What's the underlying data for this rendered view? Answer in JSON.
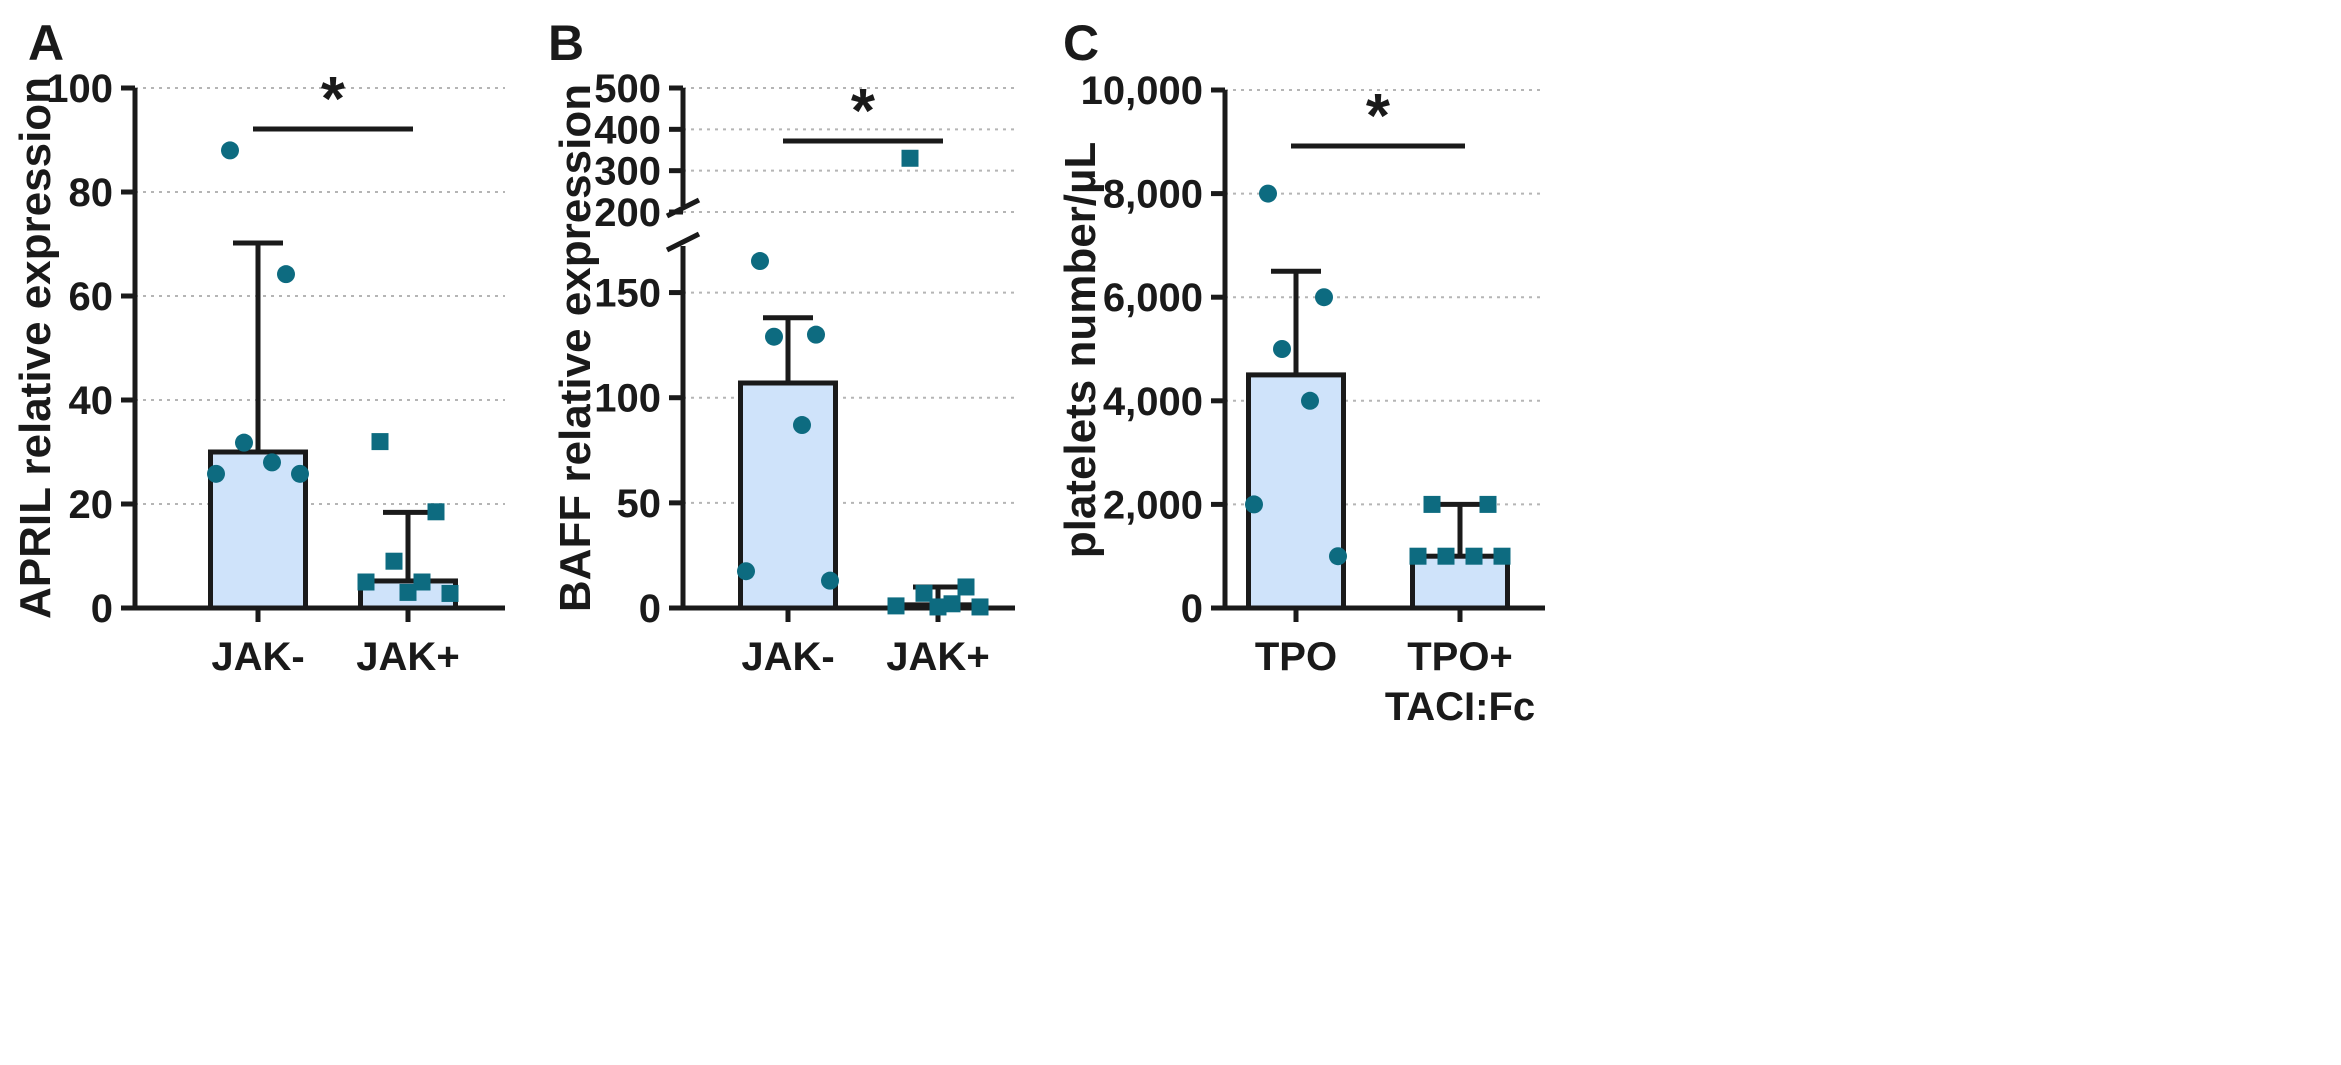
{
  "chart_data": [
    {
      "panel": "A",
      "type": "bar",
      "ylabel": "APRIL relative expression",
      "ylim": [
        0,
        100
      ],
      "yticks": [
        0,
        20,
        40,
        60,
        80,
        100
      ],
      "categories": [
        "JAK-",
        "JAK+"
      ],
      "means": [
        30,
        5.2
      ],
      "error_upper": [
        70.2,
        18.4
      ],
      "points": [
        {
          "category": "JAK-",
          "marker": "circle",
          "values": [
            88,
            64.2,
            31.8,
            28,
            25.8,
            25.8
          ]
        },
        {
          "category": "JAK+",
          "marker": "square",
          "values": [
            32,
            18.5,
            9,
            5,
            5,
            2.8,
            3
          ]
        }
      ],
      "significance": {
        "between": [
          "JAK-",
          "JAK+"
        ],
        "label": "*"
      },
      "colors": {
        "bar_fill": "#cfe3fa",
        "marker": "#0d6b80"
      },
      "grid": true
    },
    {
      "panel": "B",
      "type": "bar",
      "ylabel": "BAFF relative expression",
      "ylim": [
        0,
        500
      ],
      "axis_break": [
        175,
        200
      ],
      "yticks_lower": [
        0,
        50,
        100,
        150
      ],
      "yticks_upper": [
        200,
        300,
        400,
        500
      ],
      "categories": [
        "JAK-",
        "JAK+"
      ],
      "means": [
        107,
        1.5
      ],
      "error_upper": [
        138,
        10
      ],
      "points": [
        {
          "category": "JAK-",
          "marker": "circle",
          "values": [
            165,
            130,
            129,
            87,
            17.5,
            13
          ]
        },
        {
          "category": "JAK+",
          "marker": "square",
          "values": [
            330,
            10,
            7,
            2,
            1,
            0.5,
            0.5
          ]
        }
      ],
      "significance": {
        "between": [
          "JAK-",
          "JAK+"
        ],
        "label": "*"
      },
      "colors": {
        "bar_fill": "#cfe3fa",
        "marker": "#0d6b80"
      },
      "grid": true
    },
    {
      "panel": "C",
      "type": "bar",
      "ylabel": "platelets number/µL",
      "ylim": [
        0,
        10000
      ],
      "yticks": [
        0,
        2000,
        4000,
        6000,
        8000,
        10000
      ],
      "ytick_labels": [
        "0",
        "2,000",
        "4,000",
        "6,000",
        "8,000",
        "10,000"
      ],
      "categories": [
        "TPO",
        "TPO+ TACI:Fc"
      ],
      "category_lines": [
        [
          "TPO"
        ],
        [
          "TPO+",
          "TACI:Fc"
        ]
      ],
      "means": [
        4500,
        1000
      ],
      "error_upper": [
        6500,
        2000
      ],
      "points": [
        {
          "category": "TPO",
          "marker": "circle",
          "values": [
            8000,
            6000,
            5000,
            4000,
            2000,
            1000
          ]
        },
        {
          "category": "TPO+ TACI:Fc",
          "marker": "square",
          "values": [
            2000,
            2000,
            1000,
            1000,
            1000,
            1000
          ]
        }
      ],
      "significance": {
        "between": [
          "TPO",
          "TPO+ TACI:Fc"
        ],
        "label": "*"
      },
      "colors": {
        "bar_fill": "#cfe3fa",
        "marker": "#0d6b80"
      },
      "grid": true
    }
  ]
}
